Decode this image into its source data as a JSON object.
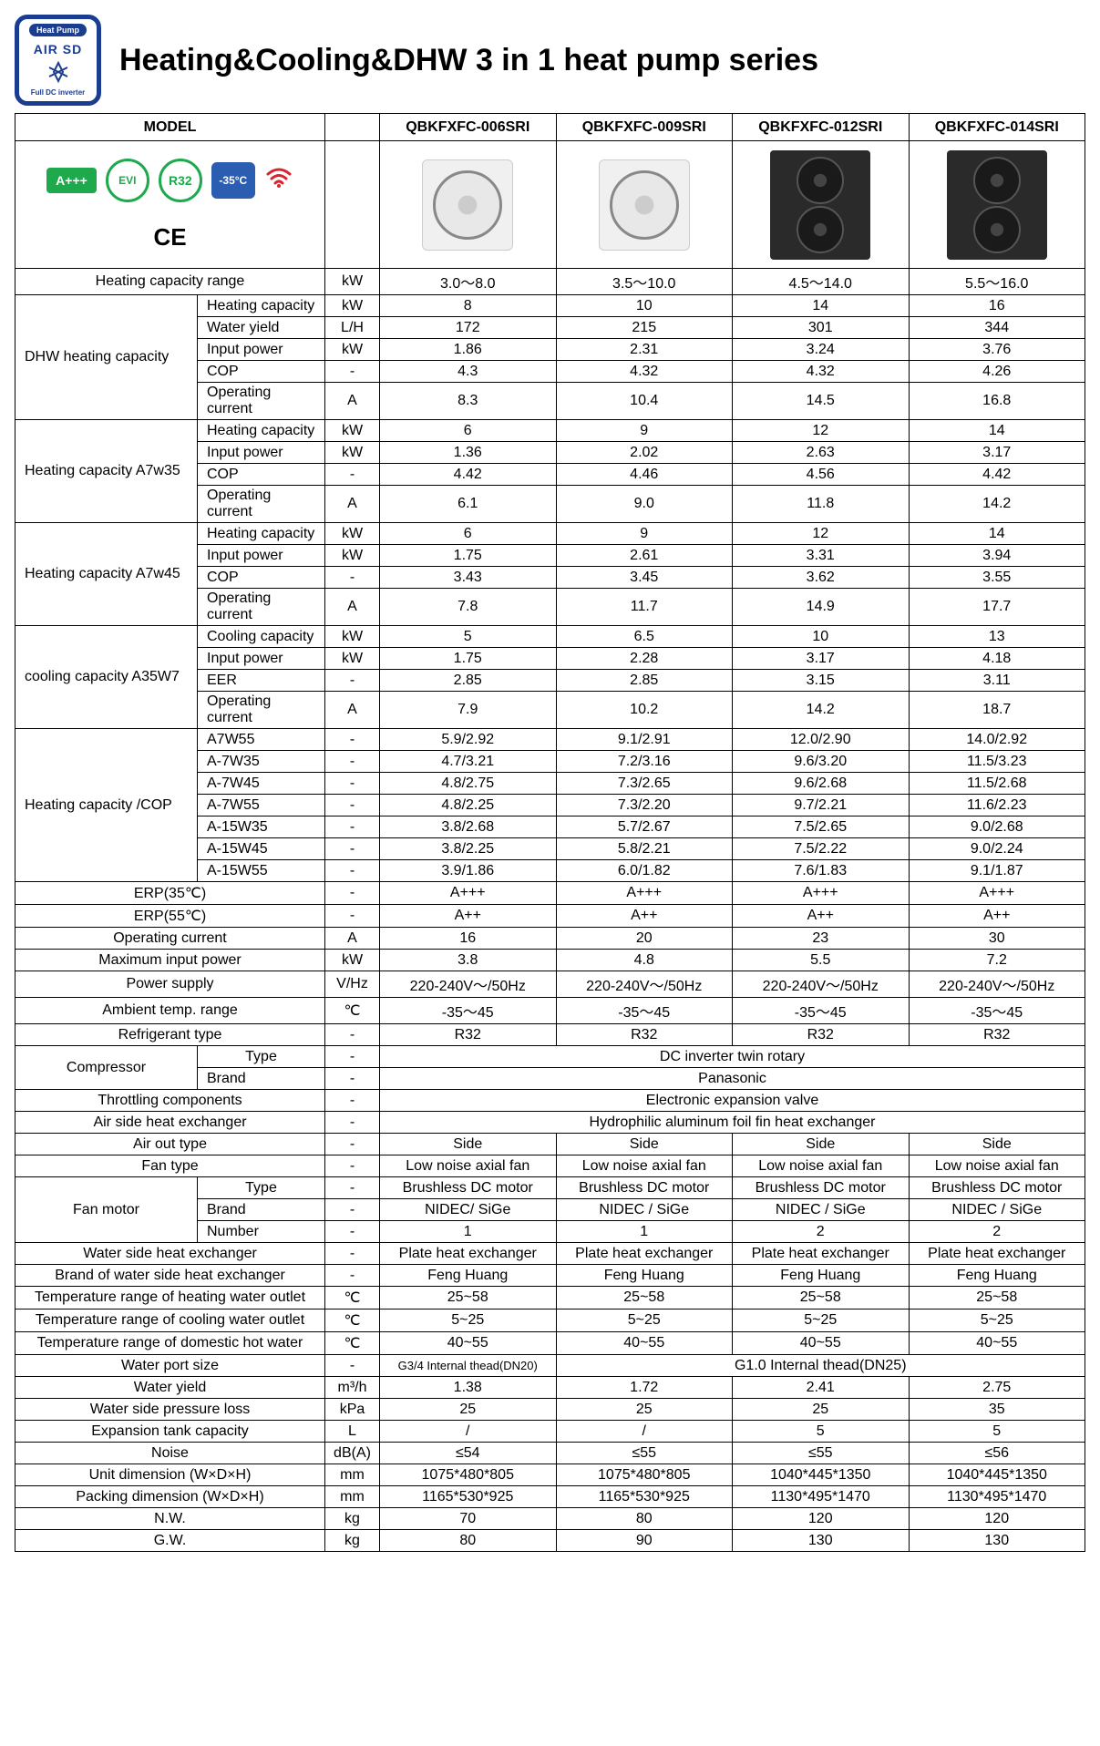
{
  "title": "Heating&Cooling&DHW 3 in 1 heat pump series",
  "badge": {
    "top": "Heat Pump",
    "logo": "AIR SD",
    "bottom": "Full DC inverter"
  },
  "model_header": "MODEL",
  "feature_tags": {
    "aplus": "A+++",
    "evi": "EVI",
    "r32": "R32",
    "temp": "-35°C",
    "ce": "CE"
  },
  "models": [
    "QBKFXFC-006SRI",
    "QBKFXFC-009SRI",
    "QBKFXFC-012SRI",
    "QBKFXFC-014SRI"
  ],
  "rows": [
    {
      "label": "Heating capacity range",
      "span": "full",
      "unit": "kW",
      "vals": [
        "3.0～8.0",
        "3.5～10.0",
        "4.5～14.0",
        "5.5～16.0"
      ]
    },
    {
      "group": "DHW heating capacity",
      "sub": "Heating capacity",
      "unit": "kW",
      "vals": [
        "8",
        "10",
        "14",
        "16"
      ]
    },
    {
      "sub": "Water yield",
      "unit": "L/H",
      "vals": [
        "172",
        "215",
        "301",
        "344"
      ]
    },
    {
      "sub": "Input power",
      "unit": "kW",
      "vals": [
        "1.86",
        "2.31",
        "3.24",
        "3.76"
      ]
    },
    {
      "sub": "COP",
      "unit": "-",
      "vals": [
        "4.3",
        "4.32",
        "4.32",
        "4.26"
      ]
    },
    {
      "sub": "Operating current",
      "unit": "A",
      "vals": [
        "8.3",
        "10.4",
        "14.5",
        "16.8"
      ]
    },
    {
      "group": "Heating capacity A7w35",
      "sub": "Heating capacity",
      "unit": "kW",
      "vals": [
        "6",
        "9",
        "12",
        "14"
      ]
    },
    {
      "sub": "Input power",
      "unit": "kW",
      "vals": [
        "1.36",
        "2.02",
        "2.63",
        "3.17"
      ]
    },
    {
      "sub": "COP",
      "unit": "-",
      "vals": [
        "4.42",
        "4.46",
        "4.56",
        "4.42"
      ]
    },
    {
      "sub": "Operating current",
      "unit": "A",
      "vals": [
        "6.1",
        "9.0",
        "11.8",
        "14.2"
      ]
    },
    {
      "group": "Heating capacity A7w45",
      "sub": "Heating capacity",
      "unit": "kW",
      "vals": [
        "6",
        "9",
        "12",
        "14"
      ]
    },
    {
      "sub": "Input power",
      "unit": "kW",
      "vals": [
        "1.75",
        "2.61",
        "3.31",
        "3.94"
      ]
    },
    {
      "sub": "COP",
      "unit": "-",
      "vals": [
        "3.43",
        "3.45",
        "3.62",
        "3.55"
      ]
    },
    {
      "sub": "Operating current",
      "unit": "A",
      "vals": [
        "7.8",
        "11.7",
        "14.9",
        "17.7"
      ]
    },
    {
      "group": "cooling capacity  A35W7",
      "sub": "Cooling capacity",
      "unit": "kW",
      "vals": [
        "5",
        "6.5",
        "10",
        "13"
      ]
    },
    {
      "sub": "Input power",
      "unit": "kW",
      "vals": [
        "1.75",
        "2.28",
        "3.17",
        "4.18"
      ]
    },
    {
      "sub": "EER",
      "unit": "-",
      "vals": [
        "2.85",
        "2.85",
        "3.15",
        "3.11"
      ]
    },
    {
      "sub": "Operating current",
      "unit": "A",
      "vals": [
        "7.9",
        "10.2",
        "14.2",
        "18.7"
      ]
    },
    {
      "group": "Heating capacity /COP",
      "sub": "A7W55",
      "unit": "-",
      "vals": [
        "5.9/2.92",
        "9.1/2.91",
        "12.0/2.90",
        "14.0/2.92"
      ]
    },
    {
      "sub": "A-7W35",
      "unit": "-",
      "vals": [
        "4.7/3.21",
        "7.2/3.16",
        "9.6/3.20",
        "11.5/3.23"
      ]
    },
    {
      "sub": "A-7W45",
      "unit": "-",
      "vals": [
        "4.8/2.75",
        "7.3/2.65",
        "9.6/2.68",
        "11.5/2.68"
      ]
    },
    {
      "sub": "A-7W55",
      "unit": "-",
      "vals": [
        "4.8/2.25",
        "7.3/2.20",
        "9.7/2.21",
        "11.6/2.23"
      ]
    },
    {
      "sub": "A-15W35",
      "unit": "-",
      "vals": [
        "3.8/2.68",
        "5.7/2.67",
        "7.5/2.65",
        "9.0/2.68"
      ]
    },
    {
      "sub": "A-15W45",
      "unit": "-",
      "vals": [
        "3.8/2.25",
        "5.8/2.21",
        "7.5/2.22",
        "9.0/2.24"
      ]
    },
    {
      "sub": "A-15W55",
      "unit": "-",
      "vals": [
        "3.9/1.86",
        "6.0/1.82",
        "7.6/1.83",
        "9.1/1.87"
      ]
    },
    {
      "label": "ERP(35℃)",
      "span": "full",
      "unit": "-",
      "vals": [
        "A+++",
        "A+++",
        "A+++",
        "A+++"
      ]
    },
    {
      "label": "ERP(55℃)",
      "span": "full",
      "unit": "-",
      "vals": [
        "A++",
        "A++",
        "A++",
        "A++"
      ]
    },
    {
      "label": "Operating current",
      "span": "full",
      "unit": "A",
      "vals": [
        "16",
        "20",
        "23",
        "30"
      ]
    },
    {
      "label": "Maximum input power",
      "span": "full",
      "unit": "kW",
      "vals": [
        "3.8",
        "4.8",
        "5.5",
        "7.2"
      ]
    },
    {
      "label": "Power supply",
      "span": "full",
      "unit": "V/Hz",
      "vals": [
        "220-240V～/50Hz",
        "220-240V～/50Hz",
        "220-240V～/50Hz",
        "220-240V～/50Hz"
      ]
    },
    {
      "label": "Ambient temp. range",
      "span": "full",
      "unit": "℃",
      "vals": [
        "-35～45",
        "-35～45",
        "-35～45",
        "-35～45"
      ]
    },
    {
      "label": "Refrigerant type",
      "span": "full",
      "unit": "-",
      "vals": [
        "R32",
        "R32",
        "R32",
        "R32"
      ]
    },
    {
      "group2": "Compressor",
      "sub": "Type",
      "unit": "-",
      "merged": "DC inverter twin rotary"
    },
    {
      "sub": "Brand",
      "unit": "-",
      "merged": "Panasonic"
    },
    {
      "label": "Throttling components",
      "span": "full",
      "unit": "-",
      "merged": "Electronic expansion valve"
    },
    {
      "label": "Air side heat exchanger",
      "span": "full",
      "unit": "-",
      "merged": "Hydrophilic aluminum foil fin heat exchanger"
    },
    {
      "label": "Air out type",
      "span": "full",
      "unit": "-",
      "vals": [
        "Side",
        "Side",
        "Side",
        "Side"
      ]
    },
    {
      "label": "Fan type",
      "span": "full",
      "unit": "-",
      "vals": [
        "Low noise axial fan",
        "Low noise axial fan",
        "Low noise axial fan",
        "Low noise axial fan"
      ]
    },
    {
      "group3": "Fan motor",
      "sub": "Type",
      "unit": "-",
      "vals": [
        "Brushless DC motor",
        "Brushless DC motor",
        "Brushless DC motor",
        "Brushless DC motor"
      ]
    },
    {
      "sub": "Brand",
      "unit": "-",
      "vals": [
        "NIDEC/ SiGe",
        "NIDEC / SiGe",
        "NIDEC / SiGe",
        "NIDEC / SiGe"
      ]
    },
    {
      "sub": "Number",
      "unit": "-",
      "vals": [
        "1",
        "1",
        "2",
        "2"
      ]
    },
    {
      "label": "Water side heat exchanger",
      "span": "full",
      "unit": "-",
      "vals": [
        "Plate heat exchanger",
        "Plate heat exchanger",
        "Plate heat exchanger",
        "Plate heat exchanger"
      ]
    },
    {
      "label": "Brand of water side heat exchanger",
      "span": "full",
      "unit": "-",
      "vals": [
        "Feng Huang",
        "Feng Huang",
        "Feng Huang",
        "Feng Huang"
      ]
    },
    {
      "label": "Temperature range of heating water outlet",
      "span": "full",
      "unit": "℃",
      "vals": [
        "25~58",
        "25~58",
        "25~58",
        "25~58"
      ]
    },
    {
      "label": "Temperature range of cooling water outlet",
      "span": "full",
      "unit": "℃",
      "vals": [
        "5~25",
        "5~25",
        "5~25",
        "5~25"
      ]
    },
    {
      "label": "Temperature range of domestic hot water",
      "span": "full",
      "unit": "℃",
      "vals": [
        "40~55",
        "40~55",
        "40~55",
        "40~55"
      ]
    },
    {
      "label": "Water port size",
      "span": "full",
      "unit": "-",
      "custom": "portsize"
    },
    {
      "label": "Water yield",
      "span": "full",
      "unit": "m³/h",
      "vals": [
        "1.38",
        "1.72",
        "2.41",
        "2.75"
      ]
    },
    {
      "label": "Water side pressure loss",
      "span": "full",
      "unit": "kPa",
      "vals": [
        "25",
        "25",
        "25",
        "35"
      ]
    },
    {
      "label": "Expansion tank capacity",
      "span": "full",
      "unit": "L",
      "vals": [
        "/",
        "/",
        "5",
        "5"
      ]
    },
    {
      "label": "Noise",
      "span": "full",
      "unit": "dB(A)",
      "vals": [
        "≤54",
        "≤55",
        "≤55",
        "≤56"
      ]
    },
    {
      "label": "Unit dimension (W×D×H)",
      "span": "full",
      "unit": "mm",
      "vals": [
        "1075*480*805",
        "1075*480*805",
        "1040*445*1350",
        "1040*445*1350"
      ]
    },
    {
      "label": "Packing dimension (W×D×H)",
      "span": "full",
      "unit": "mm",
      "vals": [
        "1165*530*925",
        "1165*530*925",
        "1130*495*1470",
        "1130*495*1470"
      ]
    },
    {
      "label": "N.W.",
      "span": "full",
      "unit": "kg",
      "vals": [
        "70",
        "80",
        "120",
        "120"
      ]
    },
    {
      "label": "G.W.",
      "span": "full",
      "unit": "kg",
      "vals": [
        "80",
        "90",
        "130",
        "130"
      ]
    }
  ],
  "port_size": {
    "small": "G3/4 Internal thead(DN20)",
    "large": "G1.0 Internal thead(DN25)"
  },
  "group_spans": {
    "DHW heating capacity": 5,
    "Heating capacity A7w35": 4,
    "Heating capacity A7w45": 4,
    "cooling capacity  A35W7": 4,
    "Heating capacity /COP": 7,
    "Compressor": 2,
    "Fan motor": 3
  }
}
